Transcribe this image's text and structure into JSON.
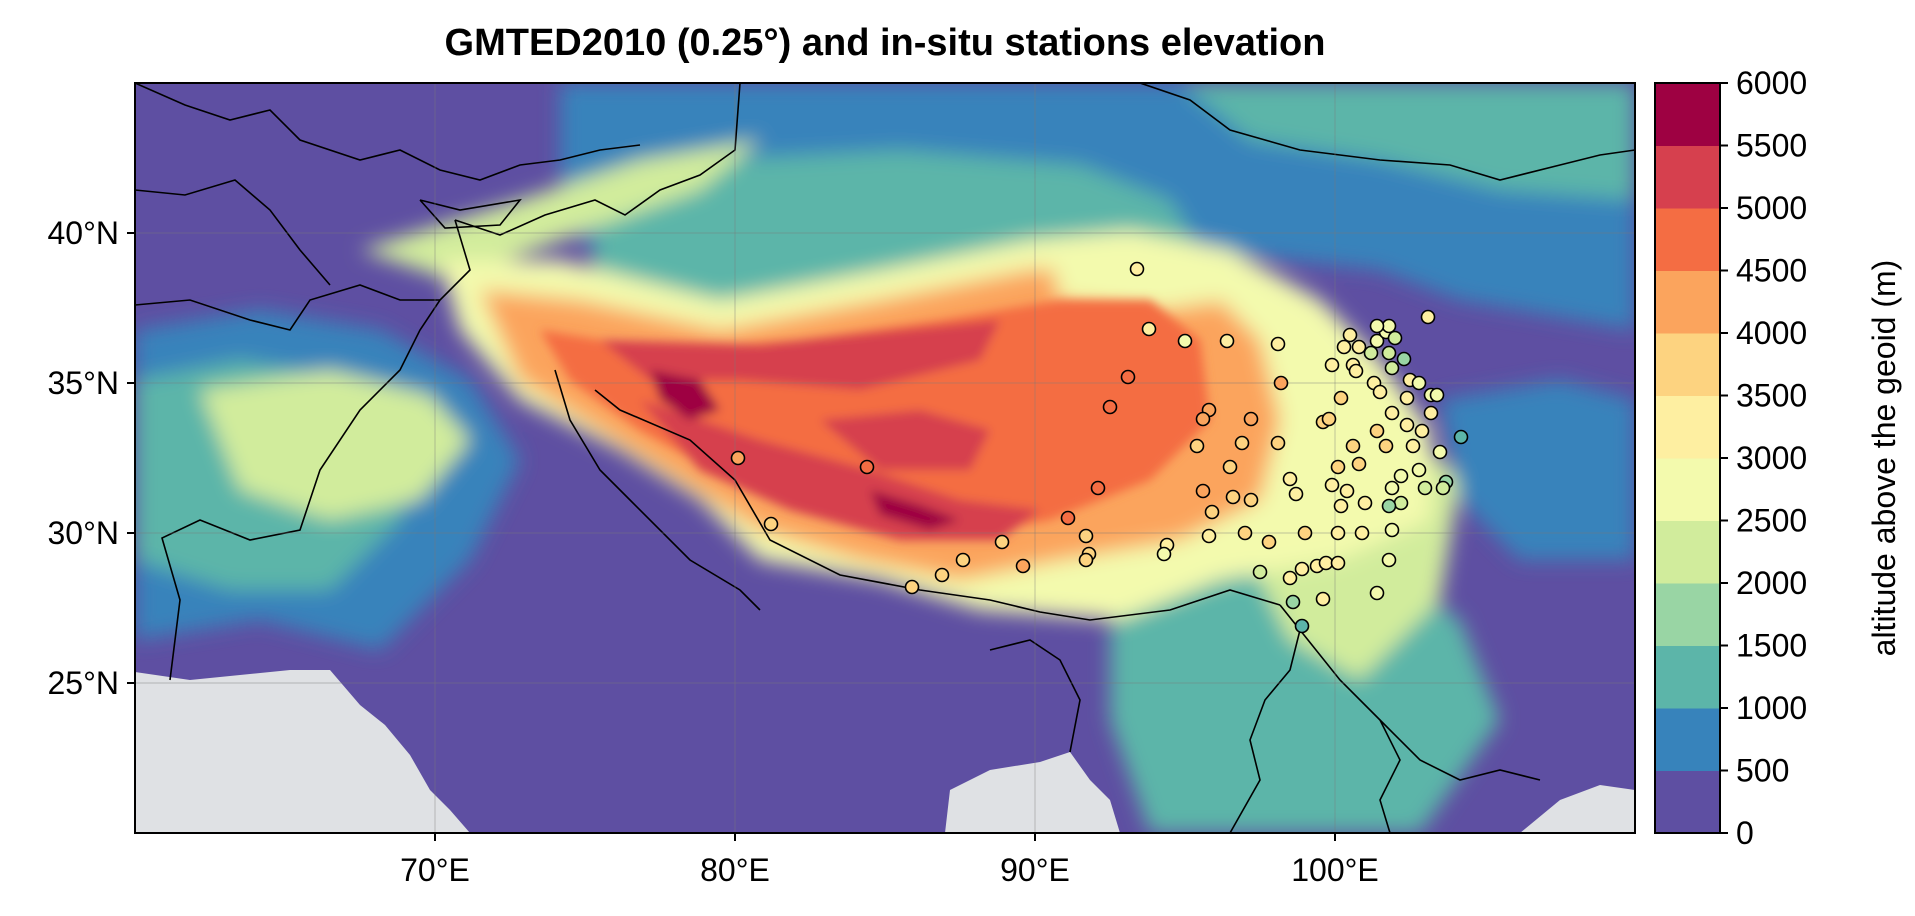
{
  "title": "GMTED2010 (0.25°) and in-situ stations elevation",
  "map": {
    "lon_range": [
      60,
      110
    ],
    "lat_range": [
      20,
      45
    ],
    "lon_ticks": [
      {
        "value": 70,
        "label": "70°E"
      },
      {
        "value": 80,
        "label": "80°E"
      },
      {
        "value": 90,
        "label": "90°E"
      },
      {
        "value": 100,
        "label": "100°E"
      }
    ],
    "lat_ticks": [
      {
        "value": 25,
        "label": "25°N"
      },
      {
        "value": 30,
        "label": "30°N"
      },
      {
        "value": 35,
        "label": "35°N"
      },
      {
        "value": 40,
        "label": "40°N"
      }
    ],
    "ocean_color": "#dfe1e4",
    "lowland_color": "#5e4fa2",
    "gridlines": true
  },
  "colorbar": {
    "label": "altitude above the geoid (m)",
    "ticks": [
      "0",
      "500",
      "1000",
      "1500",
      "2000",
      "2500",
      "3000",
      "3500",
      "4000",
      "4500",
      "5000",
      "5500",
      "6000"
    ],
    "colors": [
      "#5e4fa2",
      "#3783bb",
      "#5cb5a9",
      "#99d5a4",
      "#d1ec9c",
      "#f3faad",
      "#feefa1",
      "#fdd380",
      "#fba45d",
      "#f46d43",
      "#d6404e",
      "#9e0142"
    ]
  },
  "stations": [
    {
      "lon": 93.4,
      "lat": 38.8,
      "elev": 3000
    },
    {
      "lon": 80.1,
      "lat": 32.5,
      "elev": 4300
    },
    {
      "lon": 84.4,
      "lat": 32.2,
      "elev": 4600
    },
    {
      "lon": 81.2,
      "lat": 30.3,
      "elev": 3700
    },
    {
      "lon": 85.9,
      "lat": 28.2,
      "elev": 3800
    },
    {
      "lon": 86.9,
      "lat": 28.6,
      "elev": 3900
    },
    {
      "lon": 87.6,
      "lat": 29.1,
      "elev": 3900
    },
    {
      "lon": 88.9,
      "lat": 29.7,
      "elev": 3800
    },
    {
      "lon": 89.6,
      "lat": 28.9,
      "elev": 4300
    },
    {
      "lon": 91.1,
      "lat": 30.5,
      "elev": 4500
    },
    {
      "lon": 91.7,
      "lat": 29.9,
      "elev": 3600
    },
    {
      "lon": 91.8,
      "lat": 29.3,
      "elev": 3600
    },
    {
      "lon": 91.7,
      "lat": 29.1,
      "elev": 3600
    },
    {
      "lon": 92.1,
      "lat": 31.5,
      "elev": 4500
    },
    {
      "lon": 92.5,
      "lat": 34.2,
      "elev": 4500
    },
    {
      "lon": 93.1,
      "lat": 35.2,
      "elev": 4600
    },
    {
      "lon": 93.8,
      "lat": 36.8,
      "elev": 3000
    },
    {
      "lon": 95.0,
      "lat": 36.4,
      "elev": 2800
    },
    {
      "lon": 96.4,
      "lat": 36.4,
      "elev": 3200
    },
    {
      "lon": 98.1,
      "lat": 36.3,
      "elev": 3300
    },
    {
      "lon": 98.2,
      "lat": 35.0,
      "elev": 4300
    },
    {
      "lon": 95.8,
      "lat": 34.1,
      "elev": 4200
    },
    {
      "lon": 95.6,
      "lat": 33.8,
      "elev": 4000
    },
    {
      "lon": 95.4,
      "lat": 32.9,
      "elev": 3700
    },
    {
      "lon": 96.5,
      "lat": 32.2,
      "elev": 3600
    },
    {
      "lon": 96.9,
      "lat": 33.0,
      "elev": 3900
    },
    {
      "lon": 97.2,
      "lat": 33.8,
      "elev": 4000
    },
    {
      "lon": 95.6,
      "lat": 31.4,
      "elev": 4000
    },
    {
      "lon": 95.9,
      "lat": 30.7,
      "elev": 3900
    },
    {
      "lon": 96.6,
      "lat": 31.2,
      "elev": 3700
    },
    {
      "lon": 97.2,
      "lat": 31.1,
      "elev": 3600
    },
    {
      "lon": 97.0,
      "lat": 30.0,
      "elev": 3800
    },
    {
      "lon": 95.8,
      "lat": 29.9,
      "elev": 3300
    },
    {
      "lon": 94.4,
      "lat": 29.6,
      "elev": 3000
    },
    {
      "lon": 94.3,
      "lat": 29.3,
      "elev": 2900
    },
    {
      "lon": 97.8,
      "lat": 29.7,
      "elev": 3800
    },
    {
      "lon": 97.5,
      "lat": 28.7,
      "elev": 2400
    },
    {
      "lon": 98.1,
      "lat": 33.0,
      "elev": 3700
    },
    {
      "lon": 98.5,
      "lat": 31.8,
      "elev": 3200
    },
    {
      "lon": 98.7,
      "lat": 31.3,
      "elev": 3300
    },
    {
      "lon": 99.0,
      "lat": 30.0,
      "elev": 3800
    },
    {
      "lon": 98.5,
      "lat": 28.5,
      "elev": 3300
    },
    {
      "lon": 98.9,
      "lat": 28.8,
      "elev": 3300
    },
    {
      "lon": 99.4,
      "lat": 28.9,
      "elev": 3000
    },
    {
      "lon": 99.7,
      "lat": 29.0,
      "elev": 3200
    },
    {
      "lon": 100.1,
      "lat": 29.0,
      "elev": 3100
    },
    {
      "lon": 99.6,
      "lat": 27.8,
      "elev": 3200
    },
    {
      "lon": 98.6,
      "lat": 27.7,
      "elev": 1800
    },
    {
      "lon": 98.9,
      "lat": 26.9,
      "elev": 1400
    },
    {
      "lon": 100.1,
      "lat": 30.0,
      "elev": 3400
    },
    {
      "lon": 100.1,
      "lat": 32.2,
      "elev": 3500
    },
    {
      "lon": 99.9,
      "lat": 31.6,
      "elev": 3300
    },
    {
      "lon": 100.2,
      "lat": 30.9,
      "elev": 3200
    },
    {
      "lon": 100.4,
      "lat": 31.4,
      "elev": 3000
    },
    {
      "lon": 100.9,
      "lat": 30.0,
      "elev": 3300
    },
    {
      "lon": 101.0,
      "lat": 31.0,
      "elev": 3300
    },
    {
      "lon": 100.8,
      "lat": 32.3,
      "elev": 3500
    },
    {
      "lon": 100.6,
      "lat": 32.9,
      "elev": 3600
    },
    {
      "lon": 99.6,
      "lat": 33.7,
      "elev": 3900
    },
    {
      "lon": 99.8,
      "lat": 33.8,
      "elev": 3800
    },
    {
      "lon": 100.2,
      "lat": 34.5,
      "elev": 3600
    },
    {
      "lon": 99.9,
      "lat": 35.6,
      "elev": 3200
    },
    {
      "lon": 100.6,
      "lat": 35.6,
      "elev": 3000
    },
    {
      "lon": 100.7,
      "lat": 35.4,
      "elev": 3100
    },
    {
      "lon": 100.3,
      "lat": 36.2,
      "elev": 3200
    },
    {
      "lon": 100.5,
      "lat": 36.6,
      "elev": 3300
    },
    {
      "lon": 100.8,
      "lat": 36.2,
      "elev": 3000
    },
    {
      "lon": 101.2,
      "lat": 36.0,
      "elev": 2300
    },
    {
      "lon": 101.4,
      "lat": 36.4,
      "elev": 2500
    },
    {
      "lon": 101.7,
      "lat": 36.7,
      "elev": 2600
    },
    {
      "lon": 101.8,
      "lat": 36.9,
      "elev": 2900
    },
    {
      "lon": 102.0,
      "lat": 36.5,
      "elev": 2200
    },
    {
      "lon": 101.8,
      "lat": 36.0,
      "elev": 2000
    },
    {
      "lon": 102.3,
      "lat": 35.8,
      "elev": 1800
    },
    {
      "lon": 101.9,
      "lat": 35.5,
      "elev": 2000
    },
    {
      "lon": 102.5,
      "lat": 35.1,
      "elev": 3000
    },
    {
      "lon": 101.3,
      "lat": 35.0,
      "elev": 3100
    },
    {
      "lon": 101.5,
      "lat": 34.7,
      "elev": 3300
    },
    {
      "lon": 102.4,
      "lat": 34.5,
      "elev": 3200
    },
    {
      "lon": 102.8,
      "lat": 35.0,
      "elev": 2900
    },
    {
      "lon": 103.2,
      "lat": 34.6,
      "elev": 2800
    },
    {
      "lon": 103.4,
      "lat": 34.6,
      "elev": 2700
    },
    {
      "lon": 101.9,
      "lat": 34.0,
      "elev": 3400
    },
    {
      "lon": 101.4,
      "lat": 33.4,
      "elev": 3500
    },
    {
      "lon": 101.7,
      "lat": 32.9,
      "elev": 3600
    },
    {
      "lon": 102.4,
      "lat": 33.6,
      "elev": 3300
    },
    {
      "lon": 102.9,
      "lat": 33.4,
      "elev": 3200
    },
    {
      "lon": 103.2,
      "lat": 34.0,
      "elev": 3000
    },
    {
      "lon": 102.6,
      "lat": 32.9,
      "elev": 3400
    },
    {
      "lon": 103.5,
      "lat": 32.7,
      "elev": 2800
    },
    {
      "lon": 104.2,
      "lat": 33.2,
      "elev": 1400
    },
    {
      "lon": 103.7,
      "lat": 31.7,
      "elev": 1500
    },
    {
      "lon": 103.6,
      "lat": 31.5,
      "elev": 2000
    },
    {
      "lon": 103.0,
      "lat": 31.5,
      "elev": 2100
    },
    {
      "lon": 102.2,
      "lat": 31.9,
      "elev": 2600
    },
    {
      "lon": 102.8,
      "lat": 32.1,
      "elev": 2700
    },
    {
      "lon": 101.9,
      "lat": 31.5,
      "elev": 2900
    },
    {
      "lon": 102.2,
      "lat": 31.0,
      "elev": 2200
    },
    {
      "lon": 101.8,
      "lat": 30.9,
      "elev": 1800
    },
    {
      "lon": 101.9,
      "lat": 30.1,
      "elev": 2600
    },
    {
      "lon": 101.8,
      "lat": 29.1,
      "elev": 2800
    },
    {
      "lon": 101.4,
      "lat": 28.0,
      "elev": 2700
    },
    {
      "lon": 103.1,
      "lat": 37.2,
      "elev": 3100
    },
    {
      "lon": 101.4,
      "lat": 36.9,
      "elev": 2800
    }
  ]
}
